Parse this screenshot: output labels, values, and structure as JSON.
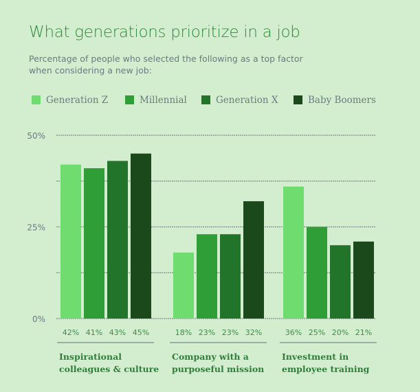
{
  "chart_data": {
    "type": "bar",
    "title": "What generations prioritize in a job",
    "subtitle": "Percentage of people who selected the following as a top factor when considering a new job:",
    "categories": [
      "Inspirational colleagues & culture",
      "Company with a purposeful mission",
      "Investment in employee training"
    ],
    "category_lines": [
      [
        "Inspirational",
        "colleagues & culture"
      ],
      [
        "Company with a",
        "purposeful mission"
      ],
      [
        "Investment in",
        "employee training"
      ]
    ],
    "series": [
      {
        "name": "Generation Z",
        "color": "#6fdc6f",
        "values": [
          42,
          18,
          36
        ]
      },
      {
        "name": "Millennial",
        "color": "#2f9e37",
        "values": [
          41,
          23,
          25
        ]
      },
      {
        "name": "Generation X",
        "color": "#23742b",
        "values": [
          43,
          23,
          20
        ]
      },
      {
        "name": "Baby Boomers",
        "color": "#1b491c",
        "values": [
          45,
          32,
          21
        ]
      }
    ],
    "ylim": [
      0,
      50
    ],
    "yticks": [
      {
        "v": 0,
        "label": "0%"
      },
      {
        "v": 25,
        "label": "25%"
      },
      {
        "v": 50,
        "label": "50%"
      }
    ],
    "gridlines": [
      0,
      12.5,
      25,
      37.5,
      50
    ],
    "grid": true,
    "legend": "top",
    "value_label_suffix": "%"
  }
}
